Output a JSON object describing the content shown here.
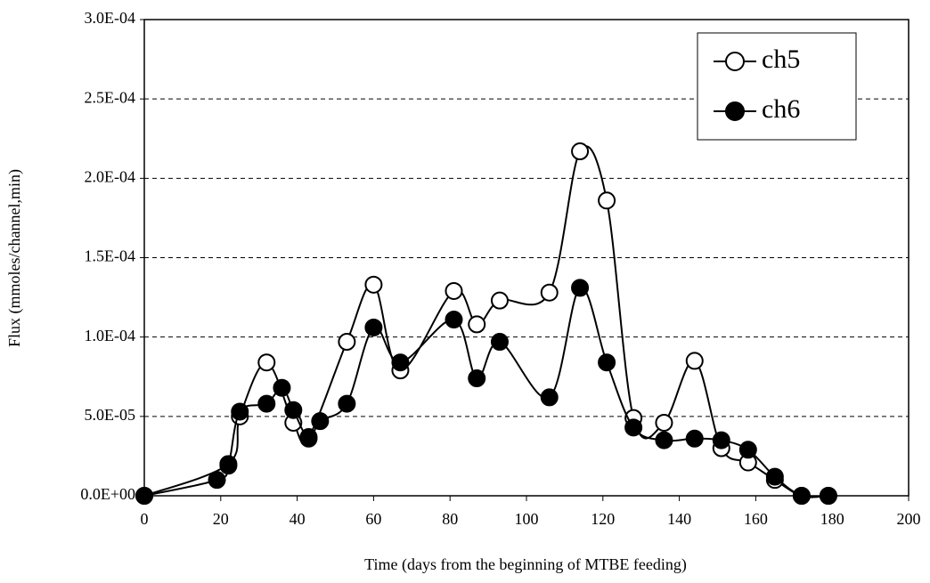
{
  "chart_data": {
    "type": "line",
    "smooth": true,
    "x_label": "Time (days from the beginning of MTBE feeding)",
    "y_label": "Flux (mmoles/channel,min)",
    "xlim": [
      0,
      200
    ],
    "xticks": [
      0,
      20,
      40,
      60,
      80,
      100,
      120,
      140,
      160,
      180,
      200
    ],
    "ylim": [
      0,
      0.0003
    ],
    "yticks": [
      {
        "value": 0,
        "label": "0.0E+00"
      },
      {
        "value": 5e-05,
        "label": "5.0E-05"
      },
      {
        "value": 0.0001,
        "label": "1.0E-04"
      },
      {
        "value": 0.00015,
        "label": "1.5E-04"
      },
      {
        "value": 0.0002,
        "label": "2.0E-04"
      },
      {
        "value": 0.00025,
        "label": "2.5E-04"
      },
      {
        "value": 0.0003,
        "label": "3.0E-04"
      }
    ],
    "grid": true,
    "legend": "upper right",
    "series": [
      {
        "name": "ch5",
        "color": "#000000",
        "marker": "open-circle",
        "x": [
          0,
          22,
          25,
          32,
          39,
          43,
          53,
          60,
          67,
          81,
          87,
          93,
          106,
          114,
          121,
          128,
          136,
          144,
          151,
          158,
          165,
          172,
          179
        ],
        "values": [
          0,
          2e-05,
          5e-05,
          8.4e-05,
          4.6e-05,
          3.7e-05,
          9.7e-05,
          0.000133,
          7.9e-05,
          0.000129,
          0.000108,
          0.000123,
          0.000128,
          0.000217,
          0.000186,
          4.9e-05,
          4.6e-05,
          8.5e-05,
          3e-05,
          2.1e-05,
          1e-05,
          0,
          0
        ]
      },
      {
        "name": "ch6",
        "color": "#000000",
        "marker": "filled-circle",
        "x": [
          0,
          19,
          22,
          25,
          32,
          36,
          39,
          43,
          46,
          53,
          60,
          67,
          81,
          87,
          93,
          106,
          114,
          121,
          128,
          136,
          144,
          151,
          158,
          165,
          172,
          179
        ],
        "values": [
          0,
          1e-05,
          1.9e-05,
          5.3e-05,
          5.8e-05,
          6.8e-05,
          5.4e-05,
          3.6e-05,
          4.7e-05,
          5.8e-05,
          0.000106,
          8.4e-05,
          0.000111,
          7.4e-05,
          9.7e-05,
          6.2e-05,
          0.000131,
          8.4e-05,
          4.3e-05,
          3.5e-05,
          3.6e-05,
          3.5e-05,
          2.9e-05,
          1.2e-05,
          0,
          0
        ]
      }
    ]
  }
}
